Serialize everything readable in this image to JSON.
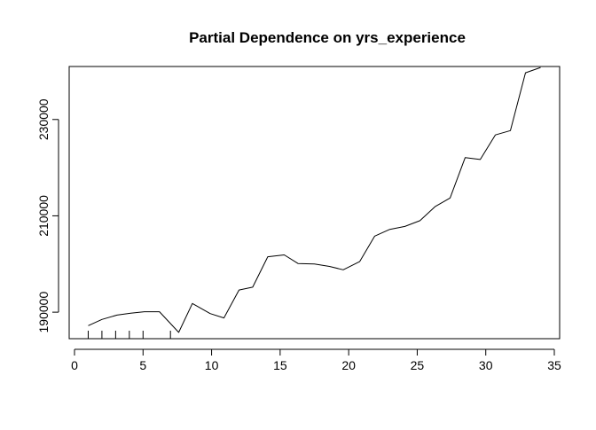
{
  "chart_data": {
    "type": "line",
    "title": "Partial Dependence on yrs_experience",
    "xlabel": "",
    "ylabel": "",
    "xlim": [
      0,
      35
    ],
    "ylim": [
      184500,
      241000
    ],
    "x_ticks": [
      0,
      5,
      10,
      15,
      20,
      25,
      30,
      35
    ],
    "y_ticks": [
      190000,
      210000,
      230000
    ],
    "x_tick_labels": [
      "0",
      "5",
      "10",
      "15",
      "20",
      "25",
      "30",
      "35"
    ],
    "y_tick_labels": [
      "190000",
      "210000",
      "230000"
    ],
    "grid": false,
    "legend": "none",
    "rug": [
      1,
      2,
      3,
      4,
      5,
      7
    ],
    "series": [
      {
        "x": [
          1.0,
          2.0,
          3.1,
          4.1,
          5.1,
          6.2,
          7.6,
          8.6,
          9.9,
          10.9,
          12.0,
          13.0,
          14.1,
          15.3,
          16.3,
          17.5,
          18.6,
          19.6,
          20.8,
          21.9,
          23.0,
          24.1,
          25.2,
          26.3,
          27.4,
          28.5,
          29.6,
          30.7,
          31.8,
          32.9,
          34.0
        ],
        "y": [
          187200,
          188500,
          189400,
          189800,
          190100,
          190100,
          185800,
          191800,
          189700,
          188800,
          194600,
          195200,
          201500,
          201900,
          200100,
          200000,
          199500,
          198800,
          200500,
          205800,
          207200,
          207800,
          209000,
          211900,
          213700,
          222100,
          221700,
          226800,
          227700,
          239700,
          240800
        ]
      }
    ]
  }
}
